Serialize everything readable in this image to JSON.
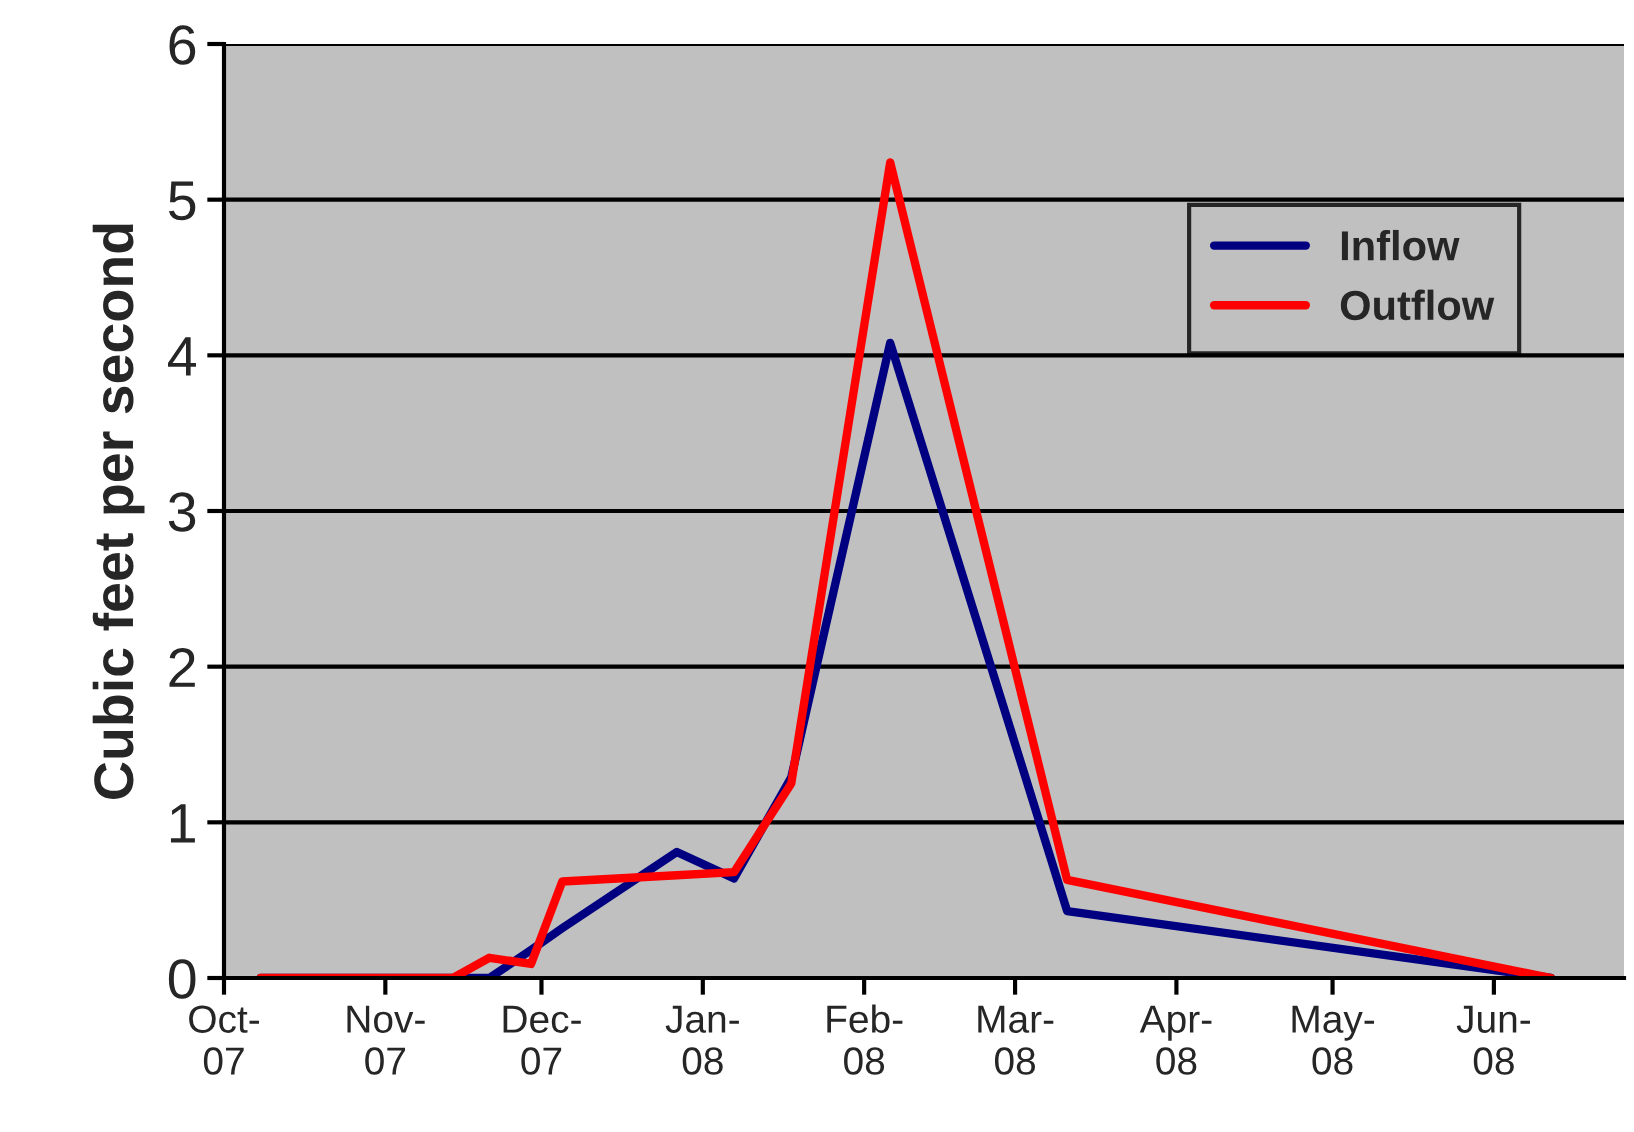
{
  "chart_data": {
    "type": "line",
    "ylabel": "Cubic feet per second",
    "x": [
      "2007-10-08",
      "2007-11-14",
      "2007-11-21",
      "2007-11-29",
      "2007-12-05",
      "2007-12-27",
      "2008-01-07",
      "2008-01-18",
      "2008-02-06",
      "2008-03-11",
      "2008-06-12"
    ],
    "series": [
      {
        "name": "Inflow",
        "color": "#000080",
        "values": [
          0,
          0,
          0,
          0.18,
          0.32,
          0.81,
          0.64,
          1.29,
          4.08,
          0.43,
          0
        ]
      },
      {
        "name": "Outflow",
        "color": "#ff0000",
        "values": [
          0,
          0,
          0.13,
          0.09,
          0.62,
          0.66,
          0.68,
          1.25,
          5.24,
          0.63,
          0
        ]
      }
    ],
    "xlim": [
      "2007-10-01",
      "2008-06-26"
    ],
    "xticks": [
      {
        "value": "2007-10-01",
        "label": "Oct-\n07"
      },
      {
        "value": "2007-11-01",
        "label": "Nov-\n07"
      },
      {
        "value": "2007-12-01",
        "label": "Dec-\n07"
      },
      {
        "value": "2008-01-01",
        "label": "Jan-\n08"
      },
      {
        "value": "2008-02-01",
        "label": "Feb-\n08"
      },
      {
        "value": "2008-03-01",
        "label": "Mar-\n08"
      },
      {
        "value": "2008-04-01",
        "label": "Apr-\n08"
      },
      {
        "value": "2008-05-01",
        "label": "May-\n08"
      },
      {
        "value": "2008-06-01",
        "label": "Jun-\n08"
      }
    ],
    "ylim": [
      0,
      6
    ],
    "yticks": [
      0,
      1,
      2,
      3,
      4,
      5,
      6
    ],
    "grid": "y",
    "legend": "top right",
    "marker": "none",
    "line_style": "solid"
  }
}
